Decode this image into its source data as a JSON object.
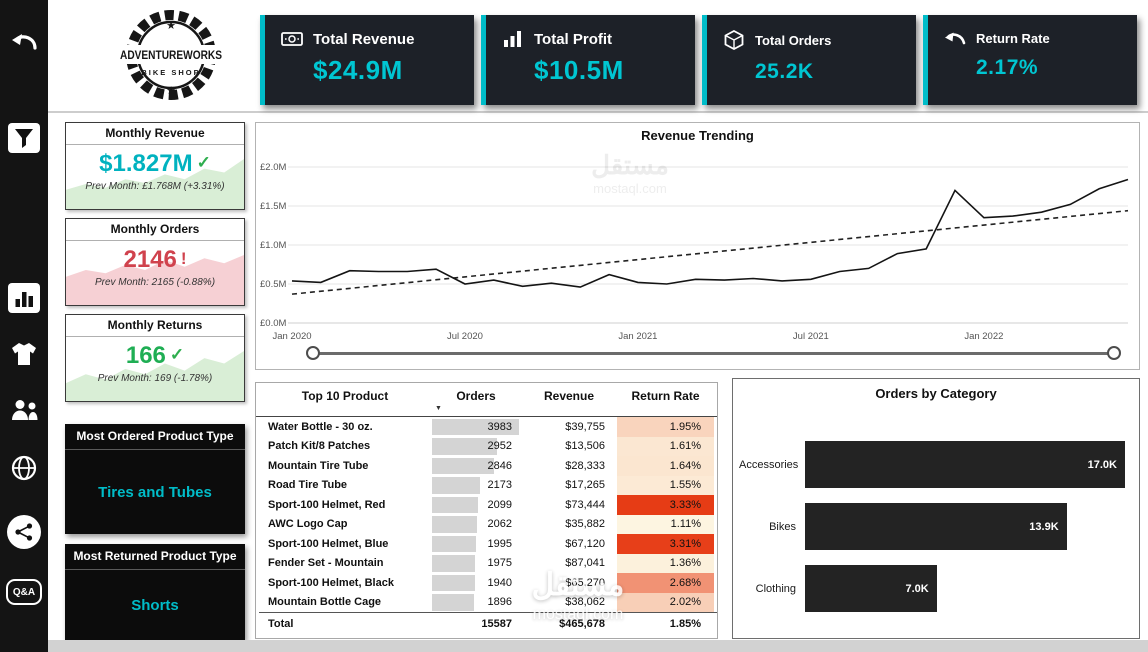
{
  "accent": "#00bcc8",
  "sidebar": {
    "qa_label": "Q&A"
  },
  "logo": {
    "brand": "ADVENTUREWORKS",
    "tagline": "BIKE SHOP",
    "star": "★"
  },
  "kpis": [
    {
      "label": "Total Revenue",
      "value": "$24.9M"
    },
    {
      "label": "Total Profit",
      "value": "$10.5M"
    },
    {
      "label": "Total Orders",
      "value": "25.2K"
    },
    {
      "label": "Return Rate",
      "value": "2.17%"
    }
  ],
  "monthly_cards": [
    {
      "title": "Monthly Revenue",
      "value": "$1.827M",
      "status_mark": "✓",
      "prev": "Prev Month: £1.768M (+3.31%)",
      "value_color": "#00b2bf",
      "status_color": "#2eae4e",
      "spark_color": "#d9eed6",
      "spark": [
        2,
        2.6,
        2.2,
        3.1,
        2.7,
        3.6,
        3.1,
        4.2,
        3.8,
        5.2
      ]
    },
    {
      "title": "Monthly Orders",
      "value": "2146",
      "status_mark": "!",
      "prev": "Prev Month: 2165 (-0.88%)",
      "value_color": "#d0424d",
      "status_color": "#d0424d",
      "spark_color": "#f6d0d4",
      "spark": [
        3.4,
        4.2,
        3.8,
        4.8,
        4.2,
        5.4,
        4.6,
        5.6,
        5,
        6
      ]
    },
    {
      "title": "Monthly Returns",
      "value": "166",
      "status_mark": "✓",
      "prev": "Prev Month: 169 (-1.78%)",
      "value_color": "#1fae54",
      "status_color": "#2eae4e",
      "spark_color": "#d9eed6",
      "spark": [
        2,
        3,
        2.4,
        3.6,
        3,
        4.2,
        3.4,
        4.8,
        4.2,
        5.6
      ]
    }
  ],
  "type_cards": [
    {
      "title": "Most Ordered Product Type",
      "value": "Tires and Tubes"
    },
    {
      "title": "Most Returned Product Type",
      "value": "Shorts"
    }
  ],
  "watermark": {
    "text_ar": "مستقل",
    "text_domain": "mostaql.com"
  },
  "chart_data": [
    {
      "type": "line",
      "title": "Revenue Trending",
      "series_name": "Revenue",
      "x_range": "Jan 2020 – Jun 2022, monthly",
      "x_tick_labels": [
        "Jan 2020",
        "Jul 2020",
        "Jan 2021",
        "Jul 2021",
        "Jan 2022"
      ],
      "x_tick_indices": [
        0,
        6,
        12,
        18,
        24
      ],
      "y_tick_labels": [
        "£0.0M",
        "£0.5M",
        "£1.0M",
        "£1.5M",
        "£2.0M"
      ],
      "y_tick_values": [
        0,
        0.5,
        1.0,
        1.5,
        2.0
      ],
      "ylim": [
        0,
        2.0
      ],
      "grid": true,
      "legend": "none",
      "values_millions": [
        0.54,
        0.52,
        0.67,
        0.66,
        0.66,
        0.69,
        0.5,
        0.55,
        0.47,
        0.51,
        0.46,
        0.62,
        0.52,
        0.5,
        0.56,
        0.55,
        0.57,
        0.54,
        0.56,
        0.66,
        0.7,
        0.89,
        0.95,
        1.7,
        1.35,
        1.37,
        1.42,
        1.52,
        1.72,
        1.84
      ],
      "trendline_millions": {
        "start": 0.37,
        "end": 1.44
      }
    },
    {
      "type": "table",
      "title": "Top 10 Product",
      "columns": [
        "Top 10 Product",
        "Orders",
        "Revenue",
        "Return Rate"
      ],
      "rows": [
        {
          "product": "Water Bottle - 30 oz.",
          "orders": 3983,
          "revenue": "$39,755",
          "return_rate": "1.95%"
        },
        {
          "product": "Patch Kit/8 Patches",
          "orders": 2952,
          "revenue": "$13,506",
          "return_rate": "1.61%"
        },
        {
          "product": "Mountain Tire Tube",
          "orders": 2846,
          "revenue": "$28,333",
          "return_rate": "1.64%"
        },
        {
          "product": "Road Tire Tube",
          "orders": 2173,
          "revenue": "$17,265",
          "return_rate": "1.55%"
        },
        {
          "product": "Sport-100 Helmet, Red",
          "orders": 2099,
          "revenue": "$73,444",
          "return_rate": "3.33%"
        },
        {
          "product": "AWC Logo Cap",
          "orders": 2062,
          "revenue": "$35,882",
          "return_rate": "1.11%"
        },
        {
          "product": "Sport-100 Helmet, Blue",
          "orders": 1995,
          "revenue": "$67,120",
          "return_rate": "3.31%"
        },
        {
          "product": "Fender Set - Mountain",
          "orders": 1975,
          "revenue": "$87,041",
          "return_rate": "1.36%"
        },
        {
          "product": "Sport-100 Helmet, Black",
          "orders": 1940,
          "revenue": "$65,270",
          "return_rate": "2.68%"
        },
        {
          "product": "Mountain Bottle Cage",
          "orders": 1896,
          "revenue": "$38,062",
          "return_rate": "2.02%"
        }
      ],
      "total": {
        "product": "Total",
        "orders": "15587",
        "revenue": "$465,678",
        "return_rate": "1.85%"
      }
    },
    {
      "type": "bar",
      "title": "Orders by Category",
      "orientation": "horizontal",
      "categories": [
        "Accessories",
        "Bikes",
        "Clothing"
      ],
      "values_thousands": [
        17.0,
        13.9,
        7.0
      ],
      "labels": [
        "17.0K",
        "13.9K",
        "7.0K"
      ]
    }
  ]
}
